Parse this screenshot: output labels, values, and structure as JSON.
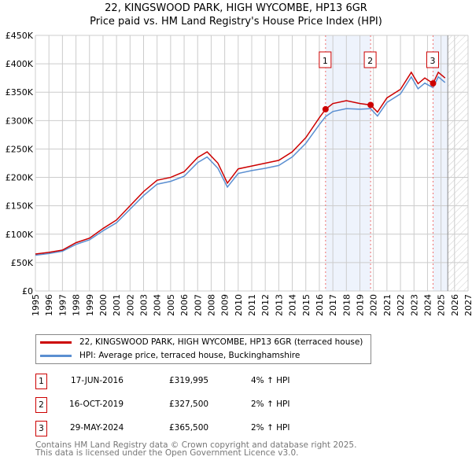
{
  "chart_data": {
    "type": "line",
    "title": "22, KINGSWOOD PARK, HIGH WYCOMBE, HP13 6GR",
    "subtitle": "Price paid vs. HM Land Registry's House Price Index (HPI)",
    "xlim": [
      1995,
      2027
    ],
    "ylim": [
      0,
      450000
    ],
    "x_ticks": [
      "1995",
      "1996",
      "1997",
      "1998",
      "1999",
      "2000",
      "2001",
      "2002",
      "2003",
      "2004",
      "2005",
      "2006",
      "2007",
      "2008",
      "2009",
      "2010",
      "2011",
      "2012",
      "2013",
      "2014",
      "2015",
      "2016",
      "2017",
      "2018",
      "2019",
      "2020",
      "2021",
      "2022",
      "2023",
      "2024",
      "2025",
      "2026",
      "2027"
    ],
    "y_ticks": [
      "£0",
      "£50K",
      "£100K",
      "£150K",
      "£200K",
      "£250K",
      "£300K",
      "£350K",
      "£400K",
      "£450K"
    ],
    "forecast_start": 2025.5,
    "series": [
      {
        "name": "22, KINGSWOOD PARK, HIGH WYCOMBE, HP13 6GR (terraced house)",
        "color": "#cc0000",
        "x": [
          1995,
          1996,
          1997,
          1998,
          1999,
          2000,
          2001,
          2002,
          2003,
          2004,
          2005,
          2006,
          2007,
          2007.7,
          2008.5,
          2009.2,
          2010,
          2011,
          2012,
          2013,
          2014,
          2015,
          2016,
          2016.46,
          2017,
          2018,
          2019,
          2019.79,
          2020.3,
          2021,
          2022,
          2022.8,
          2023.3,
          2023.8,
          2024.41,
          2024.8,
          2025.3
        ],
        "y": [
          65000,
          68000,
          72000,
          85000,
          93000,
          110000,
          125000,
          150000,
          175000,
          195000,
          200000,
          210000,
          235000,
          245000,
          225000,
          190000,
          215000,
          220000,
          225000,
          230000,
          245000,
          270000,
          305000,
          319995,
          330000,
          335000,
          330000,
          327500,
          315000,
          340000,
          355000,
          385000,
          365000,
          375000,
          365500,
          385000,
          375000
        ]
      },
      {
        "name": "HPI: Average price, terraced house, Buckinghamshire",
        "color": "#5b8fd1",
        "x": [
          1995,
          1996,
          1997,
          1998,
          1999,
          2000,
          2001,
          2002,
          2003,
          2004,
          2005,
          2006,
          2007,
          2007.7,
          2008.5,
          2009.2,
          2010,
          2011,
          2012,
          2013,
          2014,
          2015,
          2016,
          2016.46,
          2017,
          2018,
          2019,
          2019.79,
          2020.3,
          2021,
          2022,
          2022.8,
          2023.3,
          2023.8,
          2024.41,
          2024.8,
          2025.3
        ],
        "y": [
          63000,
          66000,
          70000,
          82000,
          90000,
          106000,
          120000,
          144000,
          168000,
          188000,
          193000,
          202000,
          226000,
          236000,
          216000,
          183000,
          207000,
          212000,
          216000,
          221000,
          236000,
          260000,
          293000,
          307000,
          316000,
          321000,
          320000,
          321000,
          308000,
          332000,
          347000,
          377000,
          356000,
          366000,
          358000,
          377000,
          367000
        ]
      }
    ],
    "sales": [
      {
        "label": "1",
        "date": "17-JUN-2016",
        "x": 2016.46,
        "price": "£319,995",
        "value": 319995,
        "hpi": "4% ↑ HPI"
      },
      {
        "label": "2",
        "date": "16-OCT-2019",
        "x": 2019.79,
        "price": "£327,500",
        "value": 327500,
        "hpi": "2% ↑ HPI"
      },
      {
        "label": "3",
        "date": "29-MAY-2024",
        "x": 2024.41,
        "price": "£365,500",
        "value": 365500,
        "hpi": "2% ↑ HPI"
      }
    ]
  },
  "footer": [
    "Contains HM Land Registry data © Crown copyright and database right 2025.",
    "This data is licensed under the Open Government Licence v3.0."
  ]
}
